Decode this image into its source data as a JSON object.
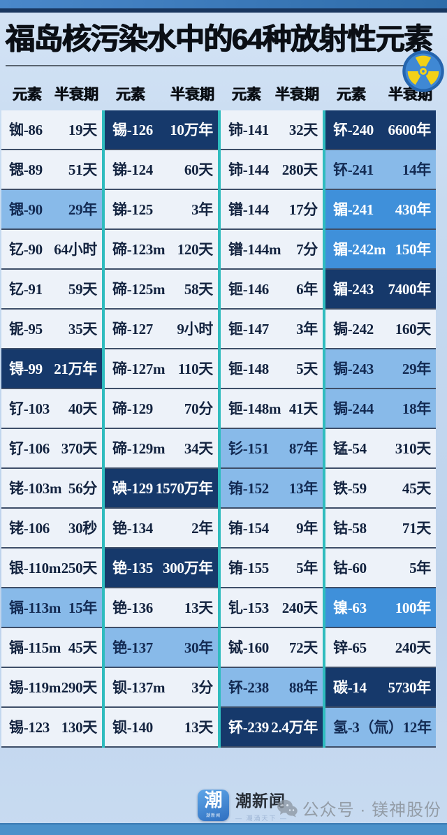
{
  "title": "福岛核污染水中的64种放射性元素",
  "chart_data": {
    "type": "table",
    "title": "福岛核污染水中的64种放射性元素",
    "header": {
      "element": "元素",
      "halflife": "半衰期"
    },
    "columns": [
      {
        "rows": [
          {
            "name": "铷-86",
            "value": "19天",
            "style": "normal"
          },
          {
            "name": "锶-89",
            "value": "51天",
            "style": "normal"
          },
          {
            "name": "锶-90",
            "value": "29年",
            "style": "light"
          },
          {
            "name": "钇-90",
            "value": "64小时",
            "style": "normal"
          },
          {
            "name": "钇-91",
            "value": "59天",
            "style": "normal"
          },
          {
            "name": "铌-95",
            "value": "35天",
            "style": "normal"
          },
          {
            "name": "锝-99",
            "value": "21万年",
            "style": "dark"
          },
          {
            "name": "钌-103",
            "value": "40天",
            "style": "normal"
          },
          {
            "name": "钌-106",
            "value": "370天",
            "style": "normal"
          },
          {
            "name": "铑-103m",
            "value": "56分",
            "style": "normal"
          },
          {
            "name": "铑-106",
            "value": "30秒",
            "style": "normal"
          },
          {
            "name": "银-110m",
            "value": "250天",
            "style": "normal"
          },
          {
            "name": "镉-113m",
            "value": "15年",
            "style": "light"
          },
          {
            "name": "镉-115m",
            "value": "45天",
            "style": "normal"
          },
          {
            "name": "锡-119m",
            "value": "290天",
            "style": "normal"
          },
          {
            "name": "锡-123",
            "value": "130天",
            "style": "normal"
          }
        ]
      },
      {
        "rows": [
          {
            "name": "锡-126",
            "value": "10万年",
            "style": "dark"
          },
          {
            "name": "锑-124",
            "value": "60天",
            "style": "normal"
          },
          {
            "name": "锑-125",
            "value": "3年",
            "style": "normal"
          },
          {
            "name": "碲-123m",
            "value": "120天",
            "style": "normal"
          },
          {
            "name": "碲-125m",
            "value": "58天",
            "style": "normal"
          },
          {
            "name": "碲-127",
            "value": "9小时",
            "style": "normal"
          },
          {
            "name": "碲-127m",
            "value": "110天",
            "style": "normal"
          },
          {
            "name": "碲-129",
            "value": "70分",
            "style": "normal"
          },
          {
            "name": "碲-129m",
            "value": "34天",
            "style": "normal"
          },
          {
            "name": "碘-129",
            "value": "1570万年",
            "style": "dark"
          },
          {
            "name": "铯-134",
            "value": "2年",
            "style": "normal"
          },
          {
            "name": "铯-135",
            "value": "300万年",
            "style": "dark"
          },
          {
            "name": "铯-136",
            "value": "13天",
            "style": "normal"
          },
          {
            "name": "铯-137",
            "value": "30年",
            "style": "light"
          },
          {
            "name": "钡-137m",
            "value": "3分",
            "style": "normal"
          },
          {
            "name": "钡-140",
            "value": "13天",
            "style": "normal"
          }
        ]
      },
      {
        "rows": [
          {
            "name": "铈-141",
            "value": "32天",
            "style": "normal"
          },
          {
            "name": "铈-144",
            "value": "280天",
            "style": "normal"
          },
          {
            "name": "镨-144",
            "value": "17分",
            "style": "normal"
          },
          {
            "name": "镨-144m",
            "value": "7分",
            "style": "normal"
          },
          {
            "name": "钷-146",
            "value": "6年",
            "style": "normal"
          },
          {
            "name": "钷-147",
            "value": "3年",
            "style": "normal"
          },
          {
            "name": "钷-148",
            "value": "5天",
            "style": "normal"
          },
          {
            "name": "钷-148m",
            "value": "41天",
            "style": "normal"
          },
          {
            "name": "钐-151",
            "value": "87年",
            "style": "light"
          },
          {
            "name": "铕-152",
            "value": "13年",
            "style": "light"
          },
          {
            "name": "铕-154",
            "value": "9年",
            "style": "normal"
          },
          {
            "name": "铕-155",
            "value": "5年",
            "style": "normal"
          },
          {
            "name": "钆-153",
            "value": "240天",
            "style": "normal"
          },
          {
            "name": "铽-160",
            "value": "72天",
            "style": "normal"
          },
          {
            "name": "钚-238",
            "value": "88年",
            "style": "light"
          },
          {
            "name": "钚-239",
            "value": "2.4万年",
            "style": "dark"
          }
        ]
      },
      {
        "rows": [
          {
            "name": "钚-240",
            "value": "6600年",
            "style": "dark"
          },
          {
            "name": "钚-241",
            "value": "14年",
            "style": "light"
          },
          {
            "name": "镅-241",
            "value": "430年",
            "style": "medium"
          },
          {
            "name": "镅-242m",
            "value": "150年",
            "style": "medium"
          },
          {
            "name": "镅-243",
            "value": "7400年",
            "style": "dark"
          },
          {
            "name": "锔-242",
            "value": "160天",
            "style": "normal"
          },
          {
            "name": "锔-243",
            "value": "29年",
            "style": "light"
          },
          {
            "name": "锔-244",
            "value": "18年",
            "style": "light"
          },
          {
            "name": "锰-54",
            "value": "310天",
            "style": "normal"
          },
          {
            "name": "铁-59",
            "value": "45天",
            "style": "normal"
          },
          {
            "name": "钴-58",
            "value": "71天",
            "style": "normal"
          },
          {
            "name": "钴-60",
            "value": "5年",
            "style": "normal"
          },
          {
            "name": "镍-63",
            "value": "100年",
            "style": "medium"
          },
          {
            "name": "锌-65",
            "value": "240天",
            "style": "normal"
          },
          {
            "name": "碳-14",
            "value": "5730年",
            "style": "dark"
          },
          {
            "name": "氢-3（氚）",
            "value": "12年",
            "style": "light"
          }
        ]
      }
    ]
  },
  "footer": {
    "logo_char": "潮",
    "logo_sub": "潮新闻",
    "brand": "潮新闻",
    "tagline": "— 潮涌天下 —",
    "watermark": "公众号 · 镁神股份"
  },
  "colors": {
    "cell_normal": "#edf2f9",
    "cell_light": "#88bae9",
    "cell_medium": "#3f90da",
    "cell_dark": "#16396b",
    "column_divider": "#2fbcbe",
    "top_bar": "#3c7dc0",
    "bottom_bar": "#4b91ca",
    "radiation_yellow": "#f3d117",
    "radiation_blue": "#3f88d4"
  }
}
